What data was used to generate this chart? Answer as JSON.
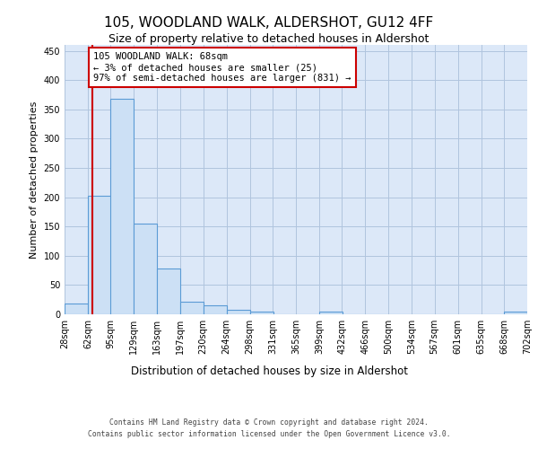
{
  "title": "105, WOODLAND WALK, ALDERSHOT, GU12 4FF",
  "subtitle": "Size of property relative to detached houses in Aldershot",
  "xlabel": "Distribution of detached houses by size in Aldershot",
  "ylabel": "Number of detached properties",
  "bin_edges": [
    28,
    62,
    95,
    129,
    163,
    197,
    230,
    264,
    298,
    331,
    365,
    399,
    432,
    466,
    500,
    534,
    567,
    601,
    635,
    668,
    702
  ],
  "bin_labels": [
    "28sqm",
    "62sqm",
    "95sqm",
    "129sqm",
    "163sqm",
    "197sqm",
    "230sqm",
    "264sqm",
    "298sqm",
    "331sqm",
    "365sqm",
    "399sqm",
    "432sqm",
    "466sqm",
    "500sqm",
    "534sqm",
    "567sqm",
    "601sqm",
    "635sqm",
    "668sqm",
    "702sqm"
  ],
  "counts": [
    18,
    203,
    368,
    155,
    78,
    21,
    15,
    8,
    5,
    0,
    0,
    5,
    0,
    0,
    0,
    0,
    0,
    0,
    0,
    5
  ],
  "bar_color": "#cce0f5",
  "bar_edge_color": "#5b9bd5",
  "property_line_x": 68,
  "annotation_text": "105 WOODLAND WALK: 68sqm\n← 3% of detached houses are smaller (25)\n97% of semi-detached houses are larger (831) →",
  "annotation_box_color": "#ffffff",
  "annotation_box_edge": "#cc0000",
  "vline_color": "#cc0000",
  "background_color": "#dce8f8",
  "grid_color": "#b0c4de",
  "ylim": [
    0,
    460
  ],
  "yticks": [
    0,
    50,
    100,
    150,
    200,
    250,
    300,
    350,
    400,
    450
  ],
  "footer_line1": "Contains HM Land Registry data © Crown copyright and database right 2024.",
  "footer_line2": "Contains public sector information licensed under the Open Government Licence v3.0."
}
